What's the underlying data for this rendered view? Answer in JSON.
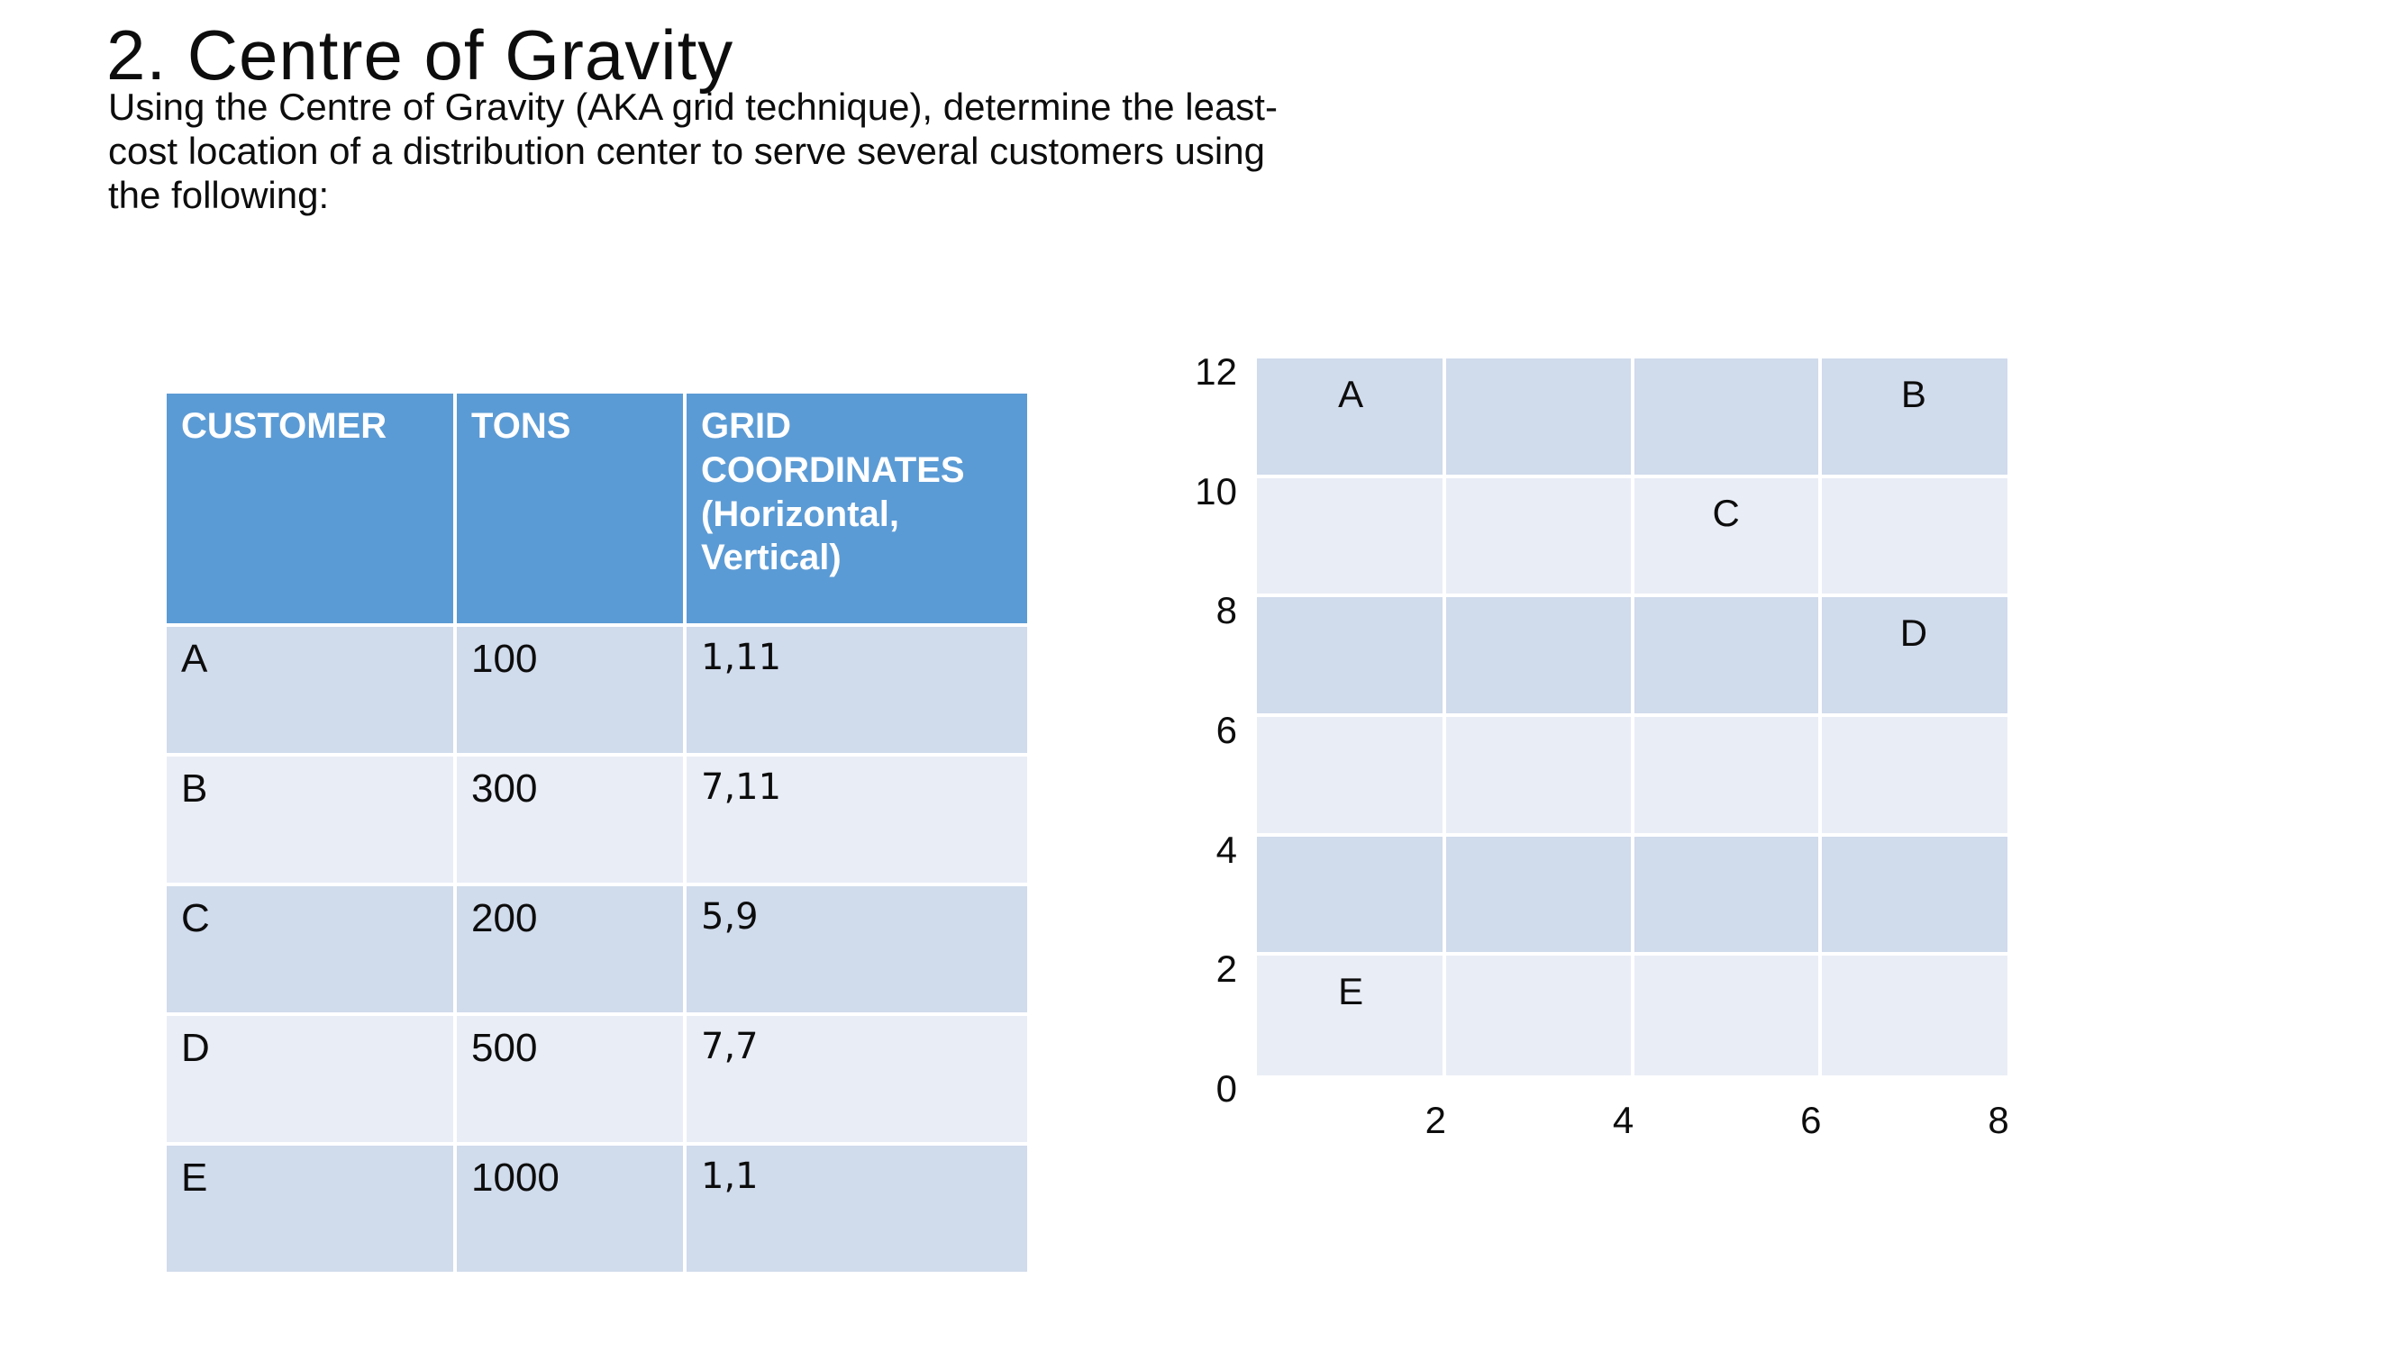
{
  "slide": {
    "title": "2. Centre of Gravity",
    "body_lines": [
      "Using the Centre of Gravity (AKA grid technique), determine the least-",
      "cost location of a distribution center to serve several customers using",
      "the following:"
    ]
  },
  "table": {
    "headers": {
      "customer": "CUSTOMER",
      "tons": "TONS",
      "coordinates": "GRID COORDINATES (Horizontal, Vertical)"
    },
    "rows": [
      {
        "customer": "A",
        "tons": "100",
        "coords": "1,11"
      },
      {
        "customer": "B",
        "tons": "300",
        "coords": "7,11"
      },
      {
        "customer": "C",
        "tons": "200",
        "coords": "5,9"
      },
      {
        "customer": "D",
        "tons": "500",
        "coords": "7,7"
      },
      {
        "customer": "E",
        "tons": "1000",
        "coords": "1,1"
      }
    ]
  },
  "chart_data": {
    "type": "scatter",
    "title": "",
    "xlabel": "",
    "ylabel": "",
    "points": [
      {
        "label": "A",
        "x": 1,
        "y": 11
      },
      {
        "label": "B",
        "x": 7,
        "y": 11
      },
      {
        "label": "C",
        "x": 5,
        "y": 9
      },
      {
        "label": "D",
        "x": 7,
        "y": 7
      },
      {
        "label": "E",
        "x": 1,
        "y": 1
      }
    ],
    "xlim": [
      0,
      8
    ],
    "ylim": [
      0,
      12
    ],
    "x_ticks": [
      2,
      4,
      6,
      8
    ],
    "y_ticks": [
      12,
      10,
      8,
      6,
      4,
      2,
      0
    ],
    "legend": "none",
    "grid": "white gridlines every 2 units; horizontal bands alternate shading",
    "band_colors_top_to_bottom": [
      "#d0dbec",
      "#e9edf6",
      "#d0dbec",
      "#e9edf6",
      "#d0dbec",
      "#e9edf6"
    ]
  },
  "colors": {
    "background": "#ffffff",
    "header_bg": "#5b9bd5",
    "header_text": "#ffffff",
    "row_dark": "#d0dbec",
    "row_light": "#e9edf6",
    "text": "#0d0d0d"
  }
}
